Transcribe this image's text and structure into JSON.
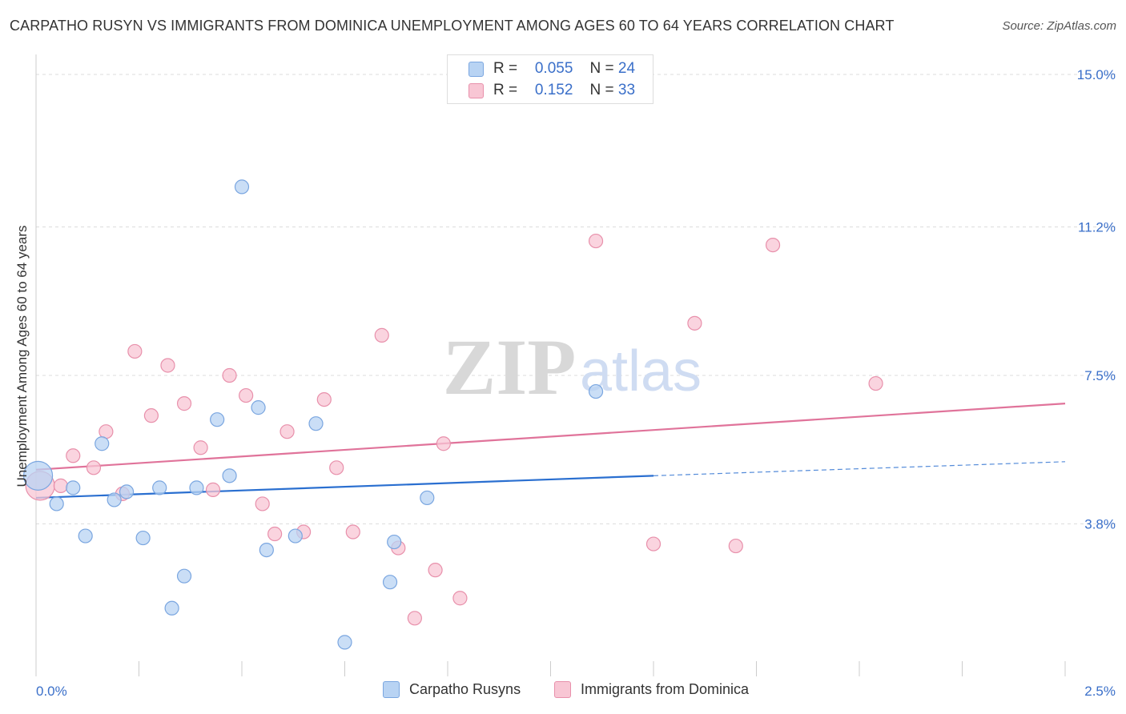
{
  "title": "CARPATHO RUSYN VS IMMIGRANTS FROM DOMINICA UNEMPLOYMENT AMONG AGES 60 TO 64 YEARS CORRELATION CHART",
  "source": "Source: ZipAtlas.com",
  "watermark": {
    "zip": "ZIP",
    "atlas": "atlas"
  },
  "legend": {
    "r_label": "R =",
    "n_label": "N =",
    "series": [
      {
        "r": "0.055",
        "n": "24"
      },
      {
        "r": "0.152",
        "n": "33"
      }
    ]
  },
  "colors": {
    "blue_fill": "#b8d3f3",
    "blue_stroke": "#7aa6e0",
    "blue_line": "#2a6fd0",
    "pink_fill": "#f8c6d4",
    "pink_stroke": "#e890ab",
    "pink_line": "#e0739a",
    "tick_label": "#3a6fc9",
    "grid": "#dddddd"
  },
  "chart_data": {
    "type": "scatter",
    "title": "CARPATHO RUSYN VS IMMIGRANTS FROM DOMINICA UNEMPLOYMENT AMONG AGES 60 TO 64 YEARS CORRELATION CHART",
    "xlabel": "",
    "ylabel": "Unemployment Among Ages 60 to 64 years",
    "xlim": [
      0,
      2.5
    ],
    "ylim": [
      0,
      15.3
    ],
    "x_tick_labels": [
      "0.0%",
      "2.5%"
    ],
    "y_ticks": [
      3.8,
      7.5,
      11.2,
      15.0
    ],
    "y_tick_labels": [
      "3.8%",
      "7.5%",
      "11.2%",
      "15.0%"
    ],
    "grid": true,
    "legend_position": "top-center",
    "series": [
      {
        "name": "Carpatho Rusyns",
        "r": 0.055,
        "n": 24,
        "trend": {
          "x0": 0.0,
          "y0": 4.45,
          "x1": 1.5,
          "y1": 5.0,
          "dashed_to_x": 2.5,
          "dashed_to_y": 5.35
        },
        "points": [
          {
            "x": 0.005,
            "y": 5.0,
            "big": true
          },
          {
            "x": 0.09,
            "y": 4.7
          },
          {
            "x": 0.05,
            "y": 4.3
          },
          {
            "x": 0.16,
            "y": 5.8
          },
          {
            "x": 0.12,
            "y": 3.5
          },
          {
            "x": 0.19,
            "y": 4.4
          },
          {
            "x": 0.22,
            "y": 4.6
          },
          {
            "x": 0.26,
            "y": 3.45
          },
          {
            "x": 0.3,
            "y": 4.7
          },
          {
            "x": 0.36,
            "y": 2.5
          },
          {
            "x": 0.33,
            "y": 1.7
          },
          {
            "x": 0.39,
            "y": 4.7
          },
          {
            "x": 0.44,
            "y": 6.4
          },
          {
            "x": 0.47,
            "y": 5.0
          },
          {
            "x": 0.5,
            "y": 12.2
          },
          {
            "x": 0.54,
            "y": 6.7
          },
          {
            "x": 0.56,
            "y": 3.15
          },
          {
            "x": 0.63,
            "y": 3.5
          },
          {
            "x": 0.68,
            "y": 6.3
          },
          {
            "x": 0.75,
            "y": 0.85
          },
          {
            "x": 0.86,
            "y": 2.35
          },
          {
            "x": 0.87,
            "y": 3.35
          },
          {
            "x": 0.95,
            "y": 4.45
          },
          {
            "x": 1.36,
            "y": 7.1
          }
        ]
      },
      {
        "name": "Immigrants from Dominica",
        "r": 0.152,
        "n": 33,
        "trend": {
          "x0": 0.0,
          "y0": 5.15,
          "x1": 2.5,
          "y1": 6.8
        },
        "points": [
          {
            "x": 0.01,
            "y": 4.75,
            "big": true
          },
          {
            "x": 0.06,
            "y": 4.75
          },
          {
            "x": 0.09,
            "y": 5.5
          },
          {
            "x": 0.14,
            "y": 5.2
          },
          {
            "x": 0.17,
            "y": 6.1
          },
          {
            "x": 0.21,
            "y": 4.55
          },
          {
            "x": 0.24,
            "y": 8.1
          },
          {
            "x": 0.28,
            "y": 6.5
          },
          {
            "x": 0.32,
            "y": 7.75
          },
          {
            "x": 0.36,
            "y": 6.8
          },
          {
            "x": 0.4,
            "y": 5.7
          },
          {
            "x": 0.43,
            "y": 4.65
          },
          {
            "x": 0.47,
            "y": 7.5
          },
          {
            "x": 0.51,
            "y": 7.0
          },
          {
            "x": 0.55,
            "y": 4.3
          },
          {
            "x": 0.58,
            "y": 3.55
          },
          {
            "x": 0.61,
            "y": 6.1
          },
          {
            "x": 0.65,
            "y": 3.6
          },
          {
            "x": 0.7,
            "y": 6.9
          },
          {
            "x": 0.73,
            "y": 5.2
          },
          {
            "x": 0.77,
            "y": 3.6
          },
          {
            "x": 0.84,
            "y": 8.5
          },
          {
            "x": 0.88,
            "y": 3.2
          },
          {
            "x": 0.92,
            "y": 1.45
          },
          {
            "x": 0.97,
            "y": 2.65
          },
          {
            "x": 0.99,
            "y": 5.8
          },
          {
            "x": 1.03,
            "y": 1.95
          },
          {
            "x": 1.36,
            "y": 10.85
          },
          {
            "x": 1.5,
            "y": 3.3
          },
          {
            "x": 1.6,
            "y": 8.8
          },
          {
            "x": 1.7,
            "y": 3.25
          },
          {
            "x": 1.79,
            "y": 10.75
          },
          {
            "x": 2.04,
            "y": 7.3
          }
        ]
      }
    ]
  }
}
